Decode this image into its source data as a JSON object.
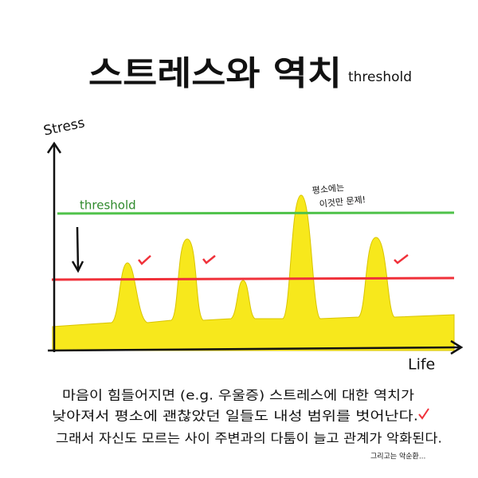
{
  "title": {
    "main": "스트레스와 역치",
    "sub": "threshold"
  },
  "axes": {
    "y": "Stress",
    "x": "Life"
  },
  "threshold_label": "threshold",
  "annotation": [
    "평소에는",
    "이것만 문제!"
  ],
  "body": {
    "lines": [
      "마음이 힘들어지면 (e.g. 우울증) 스트레스에 대한 역치가",
      "낮아져서 평소에 괜찮았던 일들도 내성 범위를 벗어난다.",
      "그래서 자신도 모르는 사이 주변과의 다툼이 늘고 관계가 악화된다."
    ],
    "footnote": "그리고는 악순환..."
  }
}
